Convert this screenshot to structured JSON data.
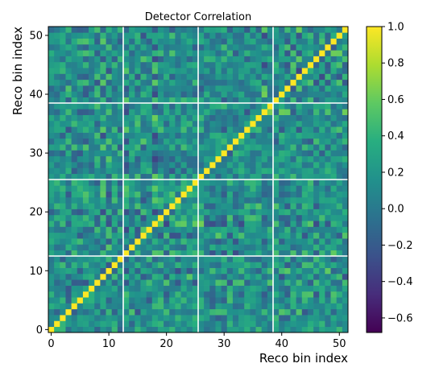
{
  "chart_data": {
    "type": "heatmap",
    "title": "Detector Correlation",
    "xlabel": "Reco bin index",
    "ylabel": "Reco bin index",
    "n_bins": 52,
    "xlim": [
      0,
      52
    ],
    "ylim": [
      0,
      52
    ],
    "x_ticks": [
      0,
      10,
      20,
      30,
      40,
      50
    ],
    "y_ticks": [
      0,
      10,
      20,
      30,
      40,
      50
    ],
    "x_tick_labels": [
      "0",
      "10",
      "20",
      "30",
      "40",
      "50"
    ],
    "y_tick_labels": [
      "0",
      "10",
      "20",
      "30",
      "40",
      "50"
    ],
    "diagonal_value": 1.0,
    "value_range": [
      -0.68,
      1.0
    ],
    "block_boundaries": [
      13,
      26,
      39
    ],
    "boundary_color": "#ffffff",
    "colormap": "viridis",
    "colorbar_ticks": [
      1.0,
      0.8,
      0.6,
      0.4,
      0.2,
      0.0,
      -0.2,
      -0.4,
      -0.6
    ],
    "colorbar_tick_labels": [
      "1.0",
      "0.8",
      "0.6",
      "0.4",
      "0.2",
      "0.0",
      "−0.2",
      "−0.4",
      "−0.6"
    ]
  }
}
